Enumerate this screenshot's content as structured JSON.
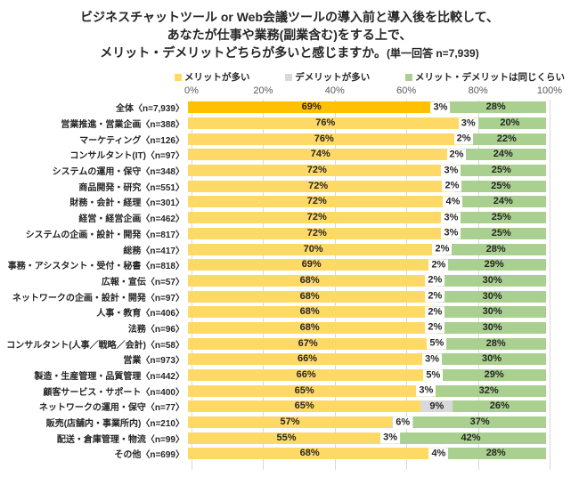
{
  "title": {
    "line1": "ビジネスチャットツール or Web会議ツールの導入前と導入後を比較して、",
    "line2": "あなたが仕事や業務(副業含む)をする上で、",
    "line3_main": "メリット・デメリットどちらが多いと感じますか。",
    "line3_suffix": "(単一回答 n=7,939)"
  },
  "legend": {
    "items": [
      {
        "label": "メリットが多い",
        "color": "#FFD966"
      },
      {
        "label": "デメリットが多い",
        "color": "#D9D9D9"
      },
      {
        "label": "メリット・デメリットは同じくらい",
        "color": "#A9D08E"
      }
    ]
  },
  "axis": {
    "ticks": [
      "0%",
      "20%",
      "40%",
      "60%",
      "80%",
      "100%"
    ]
  },
  "colors": {
    "merit": "#FFD966",
    "merit_total_row": "#FFC000",
    "demerit": "#D9D9D9",
    "same": "#A9D08E",
    "grid": "#D9D9D9",
    "text": "#262626",
    "axis_text": "#595959"
  },
  "chart_data": {
    "type": "bar",
    "orientation": "horizontal",
    "stacked": true,
    "title": "ビジネスチャットツール or Web会議ツールの導入前と導入後を比較して、あなたが仕事や業務(副業含む)をする上で、メリット・デメリットどちらが多いと感じますか。(単一回答 n=7,939)",
    "xlim": [
      0,
      100
    ],
    "x_ticks": [
      0,
      20,
      40,
      60,
      80,
      100
    ],
    "grid": true,
    "legend_position": "top",
    "value_suffix": "%",
    "categories": [
      "全体〈n=7,939〉",
      "営業推進・営業企画〈n=388〉",
      "マーケティング〈n=126〉",
      "コンサルタント(IT)〈n=97〉",
      "システムの運用・保守〈n=348〉",
      "商品開発・研究〈n=551〉",
      "財務・会計・経理〈n=301〉",
      "経営・経営企画〈n=462〉",
      "システムの企画・設計・開発〈n=817〉",
      "総務〈n=417〉",
      "事務・アシスタント・受付・秘書〈n=818〉",
      "広報・宣伝〈n=57〉",
      "ネットワークの企画・設計・開発〈n=97〉",
      "人事・教育〈n=406〉",
      "法務〈n=96〉",
      "コンサルタント(人事／戦略／会計)〈n=58〉",
      "営業〈n=973〉",
      "製造・生産管理・品質管理〈n=442〉",
      "顧客サービス・サポート〈n=400〉",
      "ネットワークの運用・保守〈n=77〉",
      "販売(店舗内・事業所内)〈n=210〉",
      "配送・倉庫管理・物流〈n=99〉",
      "その他〈n=699〉"
    ],
    "series": [
      {
        "name": "メリットが多い",
        "values": [
          69,
          76,
          76,
          74,
          72,
          72,
          72,
          72,
          72,
          70,
          69,
          68,
          68,
          68,
          68,
          67,
          66,
          66,
          65,
          65,
          57,
          55,
          68
        ]
      },
      {
        "name": "デメリットが多い",
        "values": [
          3,
          3,
          2,
          2,
          3,
          2,
          4,
          3,
          3,
          2,
          2,
          2,
          2,
          2,
          2,
          5,
          3,
          5,
          3,
          9,
          6,
          3,
          4
        ]
      },
      {
        "name": "メリット・デメリットは同じくらい",
        "values": [
          28,
          20,
          22,
          24,
          25,
          25,
          24,
          25,
          25,
          28,
          29,
          30,
          30,
          30,
          30,
          28,
          30,
          29,
          32,
          26,
          37,
          42,
          28
        ]
      }
    ]
  }
}
